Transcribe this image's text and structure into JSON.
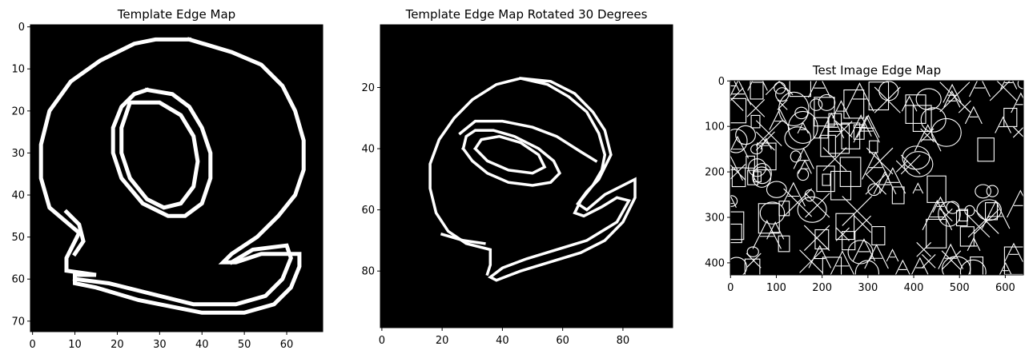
{
  "colors": {
    "background": "#000000",
    "edge": "#ffffff",
    "axis": "#000000"
  },
  "chart_data": [
    {
      "type": "heatmap",
      "title": "Template Edge Map",
      "xlim": [
        -0.5,
        68.5
      ],
      "ylim": [
        72.5,
        -0.5
      ],
      "xticks": [
        0,
        10,
        20,
        30,
        40,
        50,
        60
      ],
      "yticks": [
        0,
        10,
        20,
        30,
        40,
        50,
        60,
        70
      ],
      "grid": false,
      "paths": [
        [
          [
            37,
            3
          ],
          [
            47,
            6
          ],
          [
            54,
            9
          ],
          [
            59,
            14
          ],
          [
            62,
            20
          ],
          [
            64,
            27
          ],
          [
            64,
            34
          ],
          [
            62,
            40
          ],
          [
            58,
            45
          ],
          [
            53,
            50
          ],
          [
            47,
            54
          ],
          [
            45,
            56
          ],
          [
            48,
            56
          ],
          [
            54,
            54
          ],
          [
            63,
            54
          ],
          [
            63,
            57
          ],
          [
            61,
            62
          ],
          [
            57,
            66
          ],
          [
            50,
            68
          ],
          [
            40,
            68
          ],
          [
            25,
            65
          ],
          [
            15,
            62
          ],
          [
            10,
            61
          ],
          [
            10,
            59
          ],
          [
            15,
            59
          ],
          [
            8,
            58
          ],
          [
            8,
            55
          ],
          [
            11,
            49
          ],
          [
            4,
            43
          ],
          [
            2,
            36
          ],
          [
            2,
            28
          ],
          [
            4,
            20
          ],
          [
            9,
            13
          ],
          [
            16,
            8
          ],
          [
            24,
            4
          ],
          [
            29,
            3
          ],
          [
            37,
            3
          ]
        ],
        [
          [
            47,
            56
          ],
          [
            52,
            53
          ],
          [
            60,
            52
          ],
          [
            61,
            55
          ],
          [
            59,
            60
          ],
          [
            55,
            64
          ],
          [
            48,
            66
          ],
          [
            38,
            66
          ],
          [
            26,
            63
          ],
          [
            18,
            61
          ],
          [
            10,
            60
          ]
        ],
        [
          [
            27,
            15
          ],
          [
            33,
            16
          ],
          [
            37,
            19
          ],
          [
            40,
            24
          ],
          [
            42,
            30
          ],
          [
            42,
            36
          ],
          [
            40,
            42
          ],
          [
            36,
            45
          ],
          [
            32,
            45
          ],
          [
            26,
            42
          ],
          [
            21,
            36
          ],
          [
            19,
            30
          ],
          [
            19,
            24
          ],
          [
            21,
            19
          ],
          [
            24,
            16
          ],
          [
            27,
            15
          ]
        ],
        [
          [
            23,
            18
          ],
          [
            30,
            18
          ],
          [
            35,
            21
          ],
          [
            38,
            26
          ],
          [
            39,
            32
          ],
          [
            38,
            38
          ],
          [
            35,
            42
          ],
          [
            31,
            43
          ],
          [
            27,
            41
          ],
          [
            23,
            36
          ],
          [
            21,
            30
          ],
          [
            21,
            24
          ],
          [
            23,
            18
          ]
        ],
        [
          [
            8,
            44
          ],
          [
            11,
            47
          ],
          [
            12,
            51
          ],
          [
            10,
            54
          ]
        ]
      ]
    },
    {
      "type": "heatmap",
      "title": "Template Edge Map Rotated 30 Degrees",
      "xlim": [
        -0.5,
        96.5
      ],
      "ylim": [
        98.5,
        -0.5
      ],
      "xticks": [
        0,
        20,
        40,
        60,
        80
      ],
      "yticks": [
        20,
        40,
        60,
        80
      ],
      "grid": false,
      "paths": [
        [
          [
            46,
            17
          ],
          [
            56,
            18
          ],
          [
            64,
            22
          ],
          [
            70,
            28
          ],
          [
            74,
            34
          ],
          [
            76,
            42
          ],
          [
            72,
            50
          ],
          [
            68,
            54
          ],
          [
            65,
            58
          ],
          [
            68,
            60
          ],
          [
            74,
            55
          ],
          [
            80,
            52
          ],
          [
            84,
            50
          ],
          [
            84,
            56
          ],
          [
            80,
            64
          ],
          [
            74,
            70
          ],
          [
            66,
            74
          ],
          [
            56,
            77
          ],
          [
            46,
            80
          ],
          [
            38,
            83
          ],
          [
            36,
            82
          ],
          [
            40,
            79
          ],
          [
            48,
            76
          ],
          [
            58,
            73
          ],
          [
            68,
            70
          ],
          [
            78,
            64
          ],
          [
            82,
            57
          ],
          [
            78,
            56
          ],
          [
            73,
            59
          ],
          [
            67,
            62
          ],
          [
            64,
            61
          ],
          [
            66,
            57
          ],
          [
            70,
            52
          ],
          [
            73,
            47
          ],
          [
            74,
            42
          ],
          [
            72,
            35
          ],
          [
            68,
            28
          ],
          [
            62,
            23
          ],
          [
            55,
            19
          ],
          [
            46,
            17
          ],
          [
            38,
            19
          ],
          [
            30,
            24
          ],
          [
            24,
            30
          ],
          [
            19,
            37
          ],
          [
            16,
            45
          ],
          [
            16,
            53
          ],
          [
            18,
            61
          ],
          [
            22,
            67
          ],
          [
            28,
            71
          ],
          [
            36,
            73
          ],
          [
            36,
            78
          ],
          [
            35,
            81
          ]
        ],
        [
          [
            27,
            40
          ],
          [
            30,
            44
          ],
          [
            35,
            48
          ],
          [
            42,
            51
          ],
          [
            50,
            52
          ],
          [
            56,
            51
          ],
          [
            59,
            48
          ],
          [
            57,
            44
          ],
          [
            52,
            40
          ],
          [
            44,
            36
          ],
          [
            37,
            34
          ],
          [
            31,
            34
          ],
          [
            28,
            36
          ],
          [
            27,
            40
          ]
        ],
        [
          [
            31,
            40
          ],
          [
            35,
            44
          ],
          [
            42,
            47
          ],
          [
            50,
            48
          ],
          [
            54,
            46
          ],
          [
            52,
            42
          ],
          [
            46,
            38
          ],
          [
            39,
            36
          ],
          [
            33,
            37
          ],
          [
            31,
            40
          ]
        ],
        [
          [
            26,
            35
          ],
          [
            31,
            31
          ],
          [
            40,
            31
          ],
          [
            50,
            33
          ],
          [
            58,
            36
          ],
          [
            66,
            41
          ],
          [
            71,
            44
          ]
        ],
        [
          [
            20,
            68
          ],
          [
            27,
            70
          ],
          [
            34,
            71
          ]
        ]
      ]
    },
    {
      "type": "heatmap",
      "title": "Test Image Edge Map",
      "xlim": [
        -0.5,
        639.5
      ],
      "ylim": [
        426.5,
        -0.5
      ],
      "xticks": [
        0,
        100,
        200,
        300,
        400,
        500,
        600
      ],
      "yticks": [
        0,
        100,
        200,
        300,
        400
      ],
      "grid": false
    }
  ]
}
